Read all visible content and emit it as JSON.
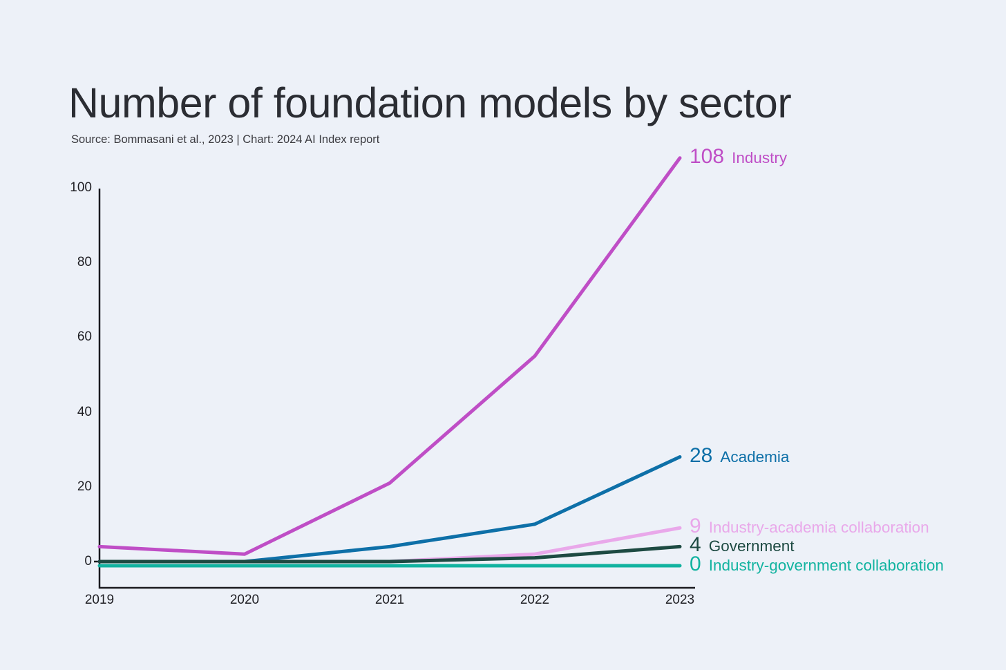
{
  "header": {
    "title": "Number of foundation models by sector",
    "subtitle": "Source: Bommasani et al., 2023 | Chart: 2024 AI Index report"
  },
  "colors": {
    "background": "#edf1f8",
    "axis": "#1a1a1f",
    "tick_text": "#1f1f24"
  },
  "chart_data": {
    "type": "line",
    "title": "Number of foundation models by sector",
    "subtitle": "Source: Bommasani et al., 2023 | Chart: 2024 AI Index report",
    "x": [
      2019,
      2020,
      2021,
      2022,
      2023
    ],
    "xlabel": "",
    "ylabel": "",
    "ylim": [
      0,
      100
    ],
    "yticks": [
      0,
      20,
      40,
      60,
      80,
      100
    ],
    "grid": false,
    "legend_position": "end-of-line-labels-right",
    "series": [
      {
        "name": "Industry",
        "values": [
          4,
          2,
          21,
          55,
          108
        ],
        "end_label_number": "108",
        "color": "#bf4ec6"
      },
      {
        "name": "Academia",
        "values": [
          0,
          0,
          4,
          10,
          28
        ],
        "end_label_number": "28",
        "color": "#0e70a8"
      },
      {
        "name": "Industry-academia collaboration",
        "values": [
          0,
          0,
          0,
          2,
          9
        ],
        "end_label_number": "9",
        "color": "#e9a8ea"
      },
      {
        "name": "Government",
        "values": [
          0,
          0,
          0,
          1,
          4
        ],
        "end_label_number": "4",
        "color": "#1d4a42"
      },
      {
        "name": "Industry-government collaboration",
        "values": [
          0,
          0,
          0,
          0,
          0
        ],
        "end_label_number": "0",
        "color": "#12b3a0"
      }
    ]
  }
}
